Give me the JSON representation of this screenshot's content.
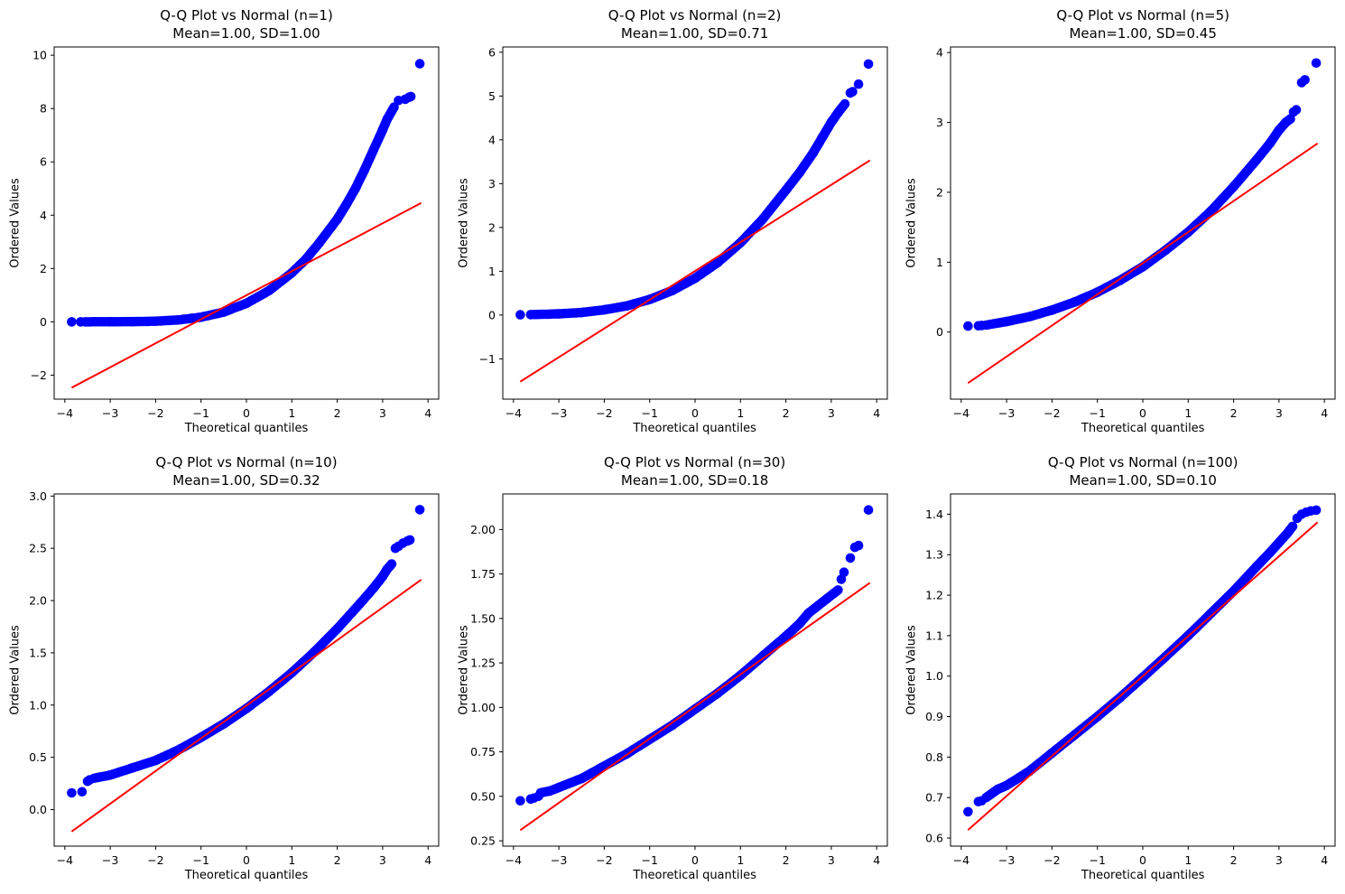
{
  "page": {
    "background": "#ffffff"
  },
  "colors": {
    "point": "#0000ff",
    "ref_line": "#ff0000",
    "axis": "#000000",
    "text": "#000000"
  },
  "chart_data": [
    {
      "type": "scatter",
      "title": "Q-Q Plot vs Normal (n=1)",
      "subtitle": "Mean=1.00, SD=1.00",
      "xlabel": "Theoretical quantiles",
      "ylabel": "Ordered Values",
      "sample_size": 1,
      "mean": 1.0,
      "sd": 1.0,
      "xlim": [
        -4.235,
        4.235
      ],
      "ylim": [
        -2.9,
        10.31
      ],
      "xtick_values": [
        -4,
        -3,
        -2,
        -1,
        0,
        1,
        2,
        3,
        4
      ],
      "xtick_labels": [
        "−4",
        "−3",
        "−2",
        "−1",
        "0",
        "1",
        "2",
        "3",
        "4"
      ],
      "ytick_values": [
        -2,
        0,
        2,
        4,
        6,
        8,
        10
      ],
      "ytick_labels": [
        "−2",
        "0",
        "2",
        "4",
        "6",
        "8",
        "10"
      ],
      "ref_line": {
        "x": [
          -3.85,
          3.85
        ],
        "y": [
          -2.47,
          4.46
        ]
      },
      "band": [
        [
          -3.5,
          0.001
        ],
        [
          -3.0,
          0.002
        ],
        [
          -2.5,
          0.007
        ],
        [
          -2.0,
          0.023
        ],
        [
          -1.5,
          0.07
        ],
        [
          -1.0,
          0.173
        ],
        [
          -0.5,
          0.365
        ],
        [
          0.0,
          0.693
        ],
        [
          0.5,
          1.17
        ],
        [
          1.0,
          1.84
        ],
        [
          1.3,
          2.33
        ],
        [
          1.6,
          2.95
        ],
        [
          2.0,
          3.85
        ],
        [
          2.2,
          4.4
        ],
        [
          2.4,
          5.0
        ],
        [
          2.6,
          5.7
        ],
        [
          2.8,
          6.45
        ],
        [
          3.0,
          7.2
        ],
        [
          3.1,
          7.6
        ],
        [
          3.25,
          8.05
        ]
      ],
      "outliers": [
        [
          -3.85,
          0.0
        ],
        [
          -3.65,
          0.0
        ],
        [
          -3.55,
          0.0
        ],
        [
          3.35,
          8.3
        ],
        [
          3.5,
          8.35
        ],
        [
          3.58,
          8.42
        ],
        [
          3.62,
          8.45
        ],
        [
          3.82,
          9.68
        ]
      ]
    },
    {
      "type": "scatter",
      "title": "Q-Q Plot vs Normal (n=2)",
      "subtitle": "Mean=1.00, SD=0.71",
      "xlabel": "Theoretical quantiles",
      "ylabel": "Ordered Values",
      "sample_size": 2,
      "mean": 1.0,
      "sd": 0.71,
      "xlim": [
        -4.235,
        4.235
      ],
      "ylim": [
        -1.92,
        6.12
      ],
      "xtick_values": [
        -4,
        -3,
        -2,
        -1,
        0,
        1,
        2,
        3,
        4
      ],
      "xtick_labels": [
        "−4",
        "−3",
        "−2",
        "−1",
        "0",
        "1",
        "2",
        "3",
        "4"
      ],
      "ytick_values": [
        -1,
        0,
        1,
        2,
        3,
        4,
        5,
        6
      ],
      "ytick_labels": [
        "−1",
        "0",
        "1",
        "2",
        "3",
        "4",
        "5",
        "6"
      ],
      "ref_line": {
        "x": [
          -3.85,
          3.85
        ],
        "y": [
          -1.52,
          3.53
        ]
      },
      "band": [
        [
          -3.5,
          0.012
        ],
        [
          -3.0,
          0.027
        ],
        [
          -2.5,
          0.058
        ],
        [
          -2.0,
          0.118
        ],
        [
          -1.5,
          0.21
        ],
        [
          -1.0,
          0.355
        ],
        [
          -0.5,
          0.56
        ],
        [
          0.0,
          0.84
        ],
        [
          0.5,
          1.2
        ],
        [
          1.0,
          1.65
        ],
        [
          1.5,
          2.2
        ],
        [
          2.0,
          2.85
        ],
        [
          2.3,
          3.25
        ],
        [
          2.6,
          3.7
        ],
        [
          2.8,
          4.05
        ],
        [
          3.0,
          4.4
        ],
        [
          3.15,
          4.62
        ],
        [
          3.3,
          4.82
        ]
      ],
      "outliers": [
        [
          -3.85,
          0.005
        ],
        [
          -3.62,
          0.01
        ],
        [
          -3.55,
          0.012
        ],
        [
          3.42,
          5.07
        ],
        [
          3.47,
          5.1
        ],
        [
          3.6,
          5.27
        ],
        [
          3.82,
          5.73
        ]
      ]
    },
    {
      "type": "scatter",
      "title": "Q-Q Plot vs Normal (n=5)",
      "subtitle": "Mean=1.00, SD=0.45",
      "xlabel": "Theoretical quantiles",
      "ylabel": "Ordered Values",
      "sample_size": 5,
      "mean": 1.0,
      "sd": 0.45,
      "xlim": [
        -4.235,
        4.235
      ],
      "ylim": [
        -0.96,
        4.08
      ],
      "xtick_values": [
        -4,
        -3,
        -2,
        -1,
        0,
        1,
        2,
        3,
        4
      ],
      "xtick_labels": [
        "−4",
        "−3",
        "−2",
        "−1",
        "0",
        "1",
        "2",
        "3",
        "4"
      ],
      "ytick_values": [
        0,
        1,
        2,
        3,
        4
      ],
      "ytick_labels": [
        "0",
        "1",
        "2",
        "3",
        "4"
      ],
      "ref_line": {
        "x": [
          -3.85,
          3.85
        ],
        "y": [
          -0.73,
          2.7
        ]
      },
      "band": [
        [
          -3.45,
          0.1
        ],
        [
          -3.0,
          0.15
        ],
        [
          -2.5,
          0.22
        ],
        [
          -2.0,
          0.314
        ],
        [
          -1.5,
          0.43
        ],
        [
          -1.0,
          0.57
        ],
        [
          -0.5,
          0.74
        ],
        [
          0.0,
          0.935
        ],
        [
          0.5,
          1.17
        ],
        [
          1.0,
          1.43
        ],
        [
          1.5,
          1.73
        ],
        [
          2.0,
          2.08
        ],
        [
          2.5,
          2.46
        ],
        [
          2.8,
          2.7
        ],
        [
          3.0,
          2.89
        ],
        [
          3.15,
          3.0
        ],
        [
          3.25,
          3.05
        ]
      ],
      "outliers": [
        [
          -3.85,
          0.085
        ],
        [
          -3.62,
          0.09
        ],
        [
          -3.55,
          0.095
        ],
        [
          3.32,
          3.15
        ],
        [
          3.38,
          3.18
        ],
        [
          3.5,
          3.57
        ],
        [
          3.57,
          3.61
        ],
        [
          3.82,
          3.85
        ]
      ]
    },
    {
      "type": "scatter",
      "title": "Q-Q Plot vs Normal (n=10)",
      "subtitle": "Mean=1.00, SD=0.32",
      "xlabel": "Theoretical quantiles",
      "ylabel": "Ordered Values",
      "sample_size": 10,
      "mean": 1.0,
      "sd": 0.32,
      "xlim": [
        -4.235,
        4.235
      ],
      "ylim": [
        -0.35,
        3.02
      ],
      "xtick_values": [
        -4,
        -3,
        -2,
        -1,
        0,
        1,
        2,
        3,
        4
      ],
      "xtick_labels": [
        "−4",
        "−3",
        "−2",
        "−1",
        "0",
        "1",
        "2",
        "3",
        "4"
      ],
      "ytick_values": [
        0.0,
        0.5,
        1.0,
        1.5,
        2.0,
        2.5,
        3.0
      ],
      "ytick_labels": [
        "0.0",
        "0.5",
        "1.0",
        "1.5",
        "2.0",
        "2.5",
        "3.0"
      ],
      "ref_line": {
        "x": [
          -3.85,
          3.85
        ],
        "y": [
          -0.21,
          2.2
        ]
      },
      "band": [
        [
          -3.35,
          0.3
        ],
        [
          -3.0,
          0.33
        ],
        [
          -2.5,
          0.4
        ],
        [
          -2.0,
          0.47
        ],
        [
          -1.5,
          0.57
        ],
        [
          -1.0,
          0.69
        ],
        [
          -0.5,
          0.82
        ],
        [
          0.0,
          0.967
        ],
        [
          0.5,
          1.13
        ],
        [
          1.0,
          1.31
        ],
        [
          1.5,
          1.51
        ],
        [
          2.0,
          1.73
        ],
        [
          2.5,
          1.97
        ],
        [
          2.8,
          2.12
        ],
        [
          3.0,
          2.23
        ],
        [
          3.1,
          2.3
        ],
        [
          3.2,
          2.35
        ]
      ],
      "outliers": [
        [
          -3.85,
          0.16
        ],
        [
          -3.62,
          0.17
        ],
        [
          -3.5,
          0.27
        ],
        [
          -3.45,
          0.285
        ],
        [
          3.28,
          2.5
        ],
        [
          3.35,
          2.52
        ],
        [
          3.45,
          2.55
        ],
        [
          3.55,
          2.57
        ],
        [
          3.6,
          2.58
        ],
        [
          3.82,
          2.87
        ]
      ]
    },
    {
      "type": "scatter",
      "title": "Q-Q Plot vs Normal (n=30)",
      "subtitle": "Mean=1.00, SD=0.18",
      "xlabel": "Theoretical quantiles",
      "ylabel": "Ordered Values",
      "sample_size": 30,
      "mean": 1.0,
      "sd": 0.18,
      "xlim": [
        -4.235,
        4.235
      ],
      "ylim": [
        0.22,
        2.2
      ],
      "xtick_values": [
        -4,
        -3,
        -2,
        -1,
        0,
        1,
        2,
        3,
        4
      ],
      "xtick_labels": [
        "−4",
        "−3",
        "−2",
        "−1",
        "0",
        "1",
        "2",
        "3",
        "4"
      ],
      "ytick_values": [
        0.25,
        0.5,
        0.75,
        1.0,
        1.25,
        1.5,
        1.75,
        2.0
      ],
      "ytick_labels": [
        "0.25",
        "0.50",
        "0.75",
        "1.00",
        "1.25",
        "1.50",
        "1.75",
        "2.00"
      ],
      "ref_line": {
        "x": [
          -3.85,
          3.85
        ],
        "y": [
          0.31,
          1.7
        ]
      },
      "band": [
        [
          -3.4,
          0.52
        ],
        [
          -3.2,
          0.53
        ],
        [
          -3.0,
          0.55
        ],
        [
          -2.5,
          0.6
        ],
        [
          -2.0,
          0.67
        ],
        [
          -1.5,
          0.74
        ],
        [
          -1.0,
          0.82
        ],
        [
          -0.5,
          0.9
        ],
        [
          0.0,
          0.99
        ],
        [
          0.5,
          1.08
        ],
        [
          1.0,
          1.18
        ],
        [
          1.5,
          1.29
        ],
        [
          2.0,
          1.4
        ],
        [
          2.3,
          1.47
        ],
        [
          2.5,
          1.53
        ],
        [
          2.7,
          1.57
        ],
        [
          2.9,
          1.61
        ],
        [
          3.05,
          1.64
        ],
        [
          3.15,
          1.66
        ]
      ],
      "outliers": [
        [
          -3.85,
          0.475
        ],
        [
          -3.62,
          0.485
        ],
        [
          -3.55,
          0.49
        ],
        [
          -3.45,
          0.5
        ],
        [
          3.22,
          1.72
        ],
        [
          3.28,
          1.76
        ],
        [
          3.42,
          1.84
        ],
        [
          3.52,
          1.9
        ],
        [
          3.6,
          1.91
        ],
        [
          3.82,
          2.11
        ]
      ]
    },
    {
      "type": "scatter",
      "title": "Q-Q Plot vs Normal (n=100)",
      "subtitle": "Mean=1.00, SD=0.10",
      "xlabel": "Theoretical quantiles",
      "ylabel": "Ordered Values",
      "sample_size": 100,
      "mean": 1.0,
      "sd": 0.1,
      "xlim": [
        -4.235,
        4.235
      ],
      "ylim": [
        0.58,
        1.45
      ],
      "xtick_values": [
        -4,
        -3,
        -2,
        -1,
        0,
        1,
        2,
        3,
        4
      ],
      "xtick_labels": [
        "−4",
        "−3",
        "−2",
        "−1",
        "0",
        "1",
        "2",
        "3",
        "4"
      ],
      "ytick_values": [
        0.6,
        0.7,
        0.8,
        0.9,
        1.0,
        1.1,
        1.2,
        1.3,
        1.4
      ],
      "ytick_labels": [
        "0.6",
        "0.7",
        "0.8",
        "0.9",
        "1.0",
        "1.1",
        "1.2",
        "1.3",
        "1.4"
      ],
      "ref_line": {
        "x": [
          -3.85,
          3.85
        ],
        "y": [
          0.62,
          1.38
        ]
      },
      "band": [
        [
          -3.45,
          0.7
        ],
        [
          -3.2,
          0.72
        ],
        [
          -3.0,
          0.73
        ],
        [
          -2.5,
          0.765
        ],
        [
          -2.0,
          0.81
        ],
        [
          -1.5,
          0.855
        ],
        [
          -1.0,
          0.9
        ],
        [
          -0.5,
          0.947
        ],
        [
          0.0,
          0.997
        ],
        [
          0.5,
          1.048
        ],
        [
          1.0,
          1.1
        ],
        [
          1.5,
          1.155
        ],
        [
          2.0,
          1.21
        ],
        [
          2.5,
          1.27
        ],
        [
          2.8,
          1.305
        ],
        [
          3.0,
          1.33
        ],
        [
          3.2,
          1.355
        ],
        [
          3.3,
          1.37
        ]
      ],
      "outliers": [
        [
          -3.85,
          0.665
        ],
        [
          -3.62,
          0.69
        ],
        [
          -3.55,
          0.692
        ],
        [
          3.4,
          1.39
        ],
        [
          3.5,
          1.4
        ],
        [
          3.6,
          1.405
        ],
        [
          3.7,
          1.408
        ],
        [
          3.82,
          1.41
        ]
      ]
    }
  ]
}
